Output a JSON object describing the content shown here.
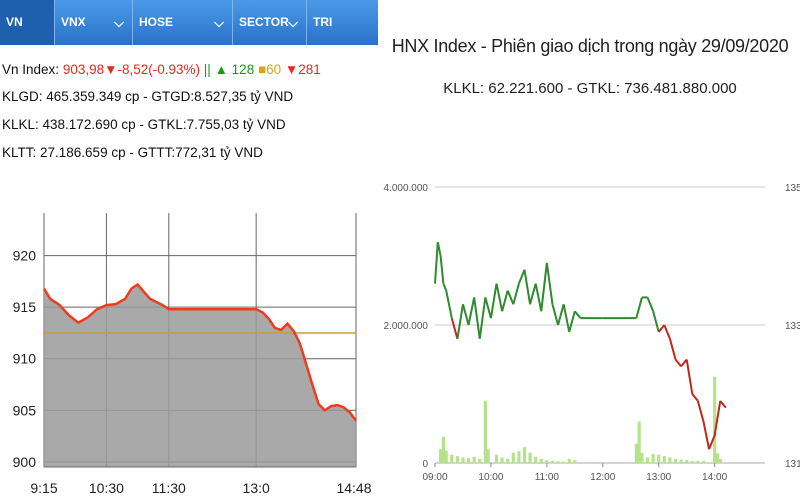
{
  "tabs": [
    {
      "label": "VN INDEX",
      "has_dropdown": false,
      "active": true
    },
    {
      "label": "VNX",
      "has_dropdown": true,
      "active": false
    },
    {
      "label": "HOSE",
      "has_dropdown": true,
      "active": false
    },
    {
      "label": "SECTOR",
      "has_dropdown": true,
      "active": false
    },
    {
      "label": "TRI",
      "has_dropdown": false,
      "active": false
    }
  ],
  "summary": {
    "index_label": "Vn Index:",
    "index_value": "903,98",
    "index_change": "▼-8,52(-0.93%)",
    "separator": "||",
    "up_count": "▲ 128",
    "flat_count": "■60",
    "down_count": "▼281",
    "line1": "KLGD: 465.359.349 cp - GTGD:8.527,35 tỷ VND",
    "line2": "KLKL: 438.172.690 cp - GTKL:7.755,03 tỷ VND",
    "line3": "KLTT: 27.186.659 cp - GTTT:772,31 tỷ VND"
  },
  "colors": {
    "up": "#1a9a1a",
    "down": "#e8281e",
    "flat": "#d9a31b",
    "tab_bg": "#2a72c8",
    "line": "#f23a1e",
    "area": "#9a9a9a",
    "ref": "#c8a030"
  },
  "chart_data": [
    {
      "type": "area",
      "title": "",
      "x_ticks": [
        "9:15",
        "10:30",
        "11:30",
        "13:0",
        "14:48"
      ],
      "y_ticks": [
        900,
        905,
        910,
        915,
        920
      ],
      "ylim": [
        899.5,
        922
      ],
      "reference": 912.5,
      "grid": true,
      "series": [
        {
          "values": [
            [
              0,
              916.8
            ],
            [
              0.02,
              915.8
            ],
            [
              0.05,
              915.2
            ],
            [
              0.08,
              914.2
            ],
            [
              0.11,
              913.5
            ],
            [
              0.14,
              914.0
            ],
            [
              0.17,
              914.8
            ],
            [
              0.2,
              915.2
            ],
            [
              0.23,
              915.3
            ],
            [
              0.26,
              915.8
            ],
            [
              0.28,
              916.8
            ],
            [
              0.3,
              917.2
            ],
            [
              0.32,
              916.5
            ],
            [
              0.34,
              915.8
            ],
            [
              0.36,
              915.5
            ],
            [
              0.38,
              915.2
            ],
            [
              0.4,
              914.8
            ],
            [
              0.45,
              914.8
            ],
            [
              0.5,
              914.8
            ],
            [
              0.55,
              914.8
            ],
            [
              0.6,
              914.8
            ],
            [
              0.65,
              914.8
            ],
            [
              0.68,
              914.8
            ],
            [
              0.7,
              914.5
            ],
            [
              0.72,
              913.9
            ],
            [
              0.74,
              913.0
            ],
            [
              0.76,
              912.8
            ],
            [
              0.78,
              913.4
            ],
            [
              0.8,
              912.7
            ],
            [
              0.82,
              911.5
            ],
            [
              0.84,
              909.5
            ],
            [
              0.86,
              907.5
            ],
            [
              0.88,
              905.6
            ],
            [
              0.9,
              905.0
            ],
            [
              0.92,
              905.4
            ],
            [
              0.94,
              905.5
            ],
            [
              0.96,
              905.3
            ],
            [
              0.98,
              904.8
            ],
            [
              1.0,
              903.98
            ]
          ]
        }
      ]
    },
    {
      "type": "line",
      "title": "HNX Index - Phiên giao dịch trong ngày 29/09/2020",
      "subtitle": "KLKL: 62.221.600 - GTKL: 736.481.880.000",
      "x_ticks": [
        "09:00",
        "10:00",
        "11:00",
        "12:00",
        "13:00",
        "14:00"
      ],
      "y_left_ticks": [
        "0",
        "2.000.000",
        "4.000.000"
      ],
      "y_right_ticks": [
        "131",
        "133",
        "135"
      ],
      "ylim_right": [
        131,
        135
      ],
      "ylim_left": [
        0,
        4000000
      ],
      "reference": 133.0,
      "grid": true,
      "price": [
        [
          9.0,
          133.6
        ],
        [
          9.05,
          134.2
        ],
        [
          9.1,
          134.0
        ],
        [
          9.15,
          133.6
        ],
        [
          9.2,
          133.5
        ],
        [
          9.3,
          133.1
        ],
        [
          9.4,
          132.8
        ],
        [
          9.5,
          133.3
        ],
        [
          9.6,
          133.0
        ],
        [
          9.7,
          133.4
        ],
        [
          9.8,
          132.8
        ],
        [
          9.9,
          133.4
        ],
        [
          10.0,
          133.1
        ],
        [
          10.1,
          133.6
        ],
        [
          10.2,
          133.2
        ],
        [
          10.3,
          133.5
        ],
        [
          10.4,
          133.3
        ],
        [
          10.5,
          133.6
        ],
        [
          10.6,
          133.8
        ],
        [
          10.7,
          133.3
        ],
        [
          10.8,
          133.6
        ],
        [
          10.9,
          133.2
        ],
        [
          11.0,
          133.9
        ],
        [
          11.1,
          133.3
        ],
        [
          11.2,
          133.0
        ],
        [
          11.3,
          133.3
        ],
        [
          11.4,
          132.9
        ],
        [
          11.5,
          133.2
        ],
        [
          11.6,
          133.1
        ],
        [
          12.0,
          133.1
        ],
        [
          12.6,
          133.1
        ],
        [
          12.7,
          133.4
        ],
        [
          12.8,
          133.4
        ],
        [
          12.9,
          133.2
        ],
        [
          13.0,
          132.9
        ],
        [
          13.1,
          133.0
        ],
        [
          13.2,
          132.8
        ],
        [
          13.3,
          132.5
        ],
        [
          13.4,
          132.4
        ],
        [
          13.5,
          132.5
        ],
        [
          13.6,
          132.0
        ],
        [
          13.7,
          131.9
        ],
        [
          13.8,
          131.6
        ],
        [
          13.9,
          131.2
        ],
        [
          14.0,
          131.4
        ],
        [
          14.1,
          131.9
        ],
        [
          14.2,
          131.8
        ]
      ],
      "volume": [
        [
          9.1,
          200000
        ],
        [
          9.15,
          380000
        ],
        [
          9.2,
          180000
        ],
        [
          9.3,
          120000
        ],
        [
          9.4,
          100000
        ],
        [
          9.5,
          80000
        ],
        [
          9.6,
          70000
        ],
        [
          9.7,
          90000
        ],
        [
          9.8,
          60000
        ],
        [
          9.9,
          900000
        ],
        [
          9.95,
          200000
        ],
        [
          10.1,
          120000
        ],
        [
          10.2,
          80000
        ],
        [
          10.3,
          60000
        ],
        [
          10.4,
          150000
        ],
        [
          10.5,
          170000
        ],
        [
          10.6,
          230000
        ],
        [
          10.7,
          150000
        ],
        [
          10.8,
          90000
        ],
        [
          10.9,
          60000
        ],
        [
          11.0,
          40000
        ],
        [
          11.1,
          30000
        ],
        [
          11.2,
          25000
        ],
        [
          11.3,
          20000
        ],
        [
          11.4,
          60000
        ],
        [
          11.5,
          40000
        ],
        [
          12.6,
          280000
        ],
        [
          12.65,
          600000
        ],
        [
          12.7,
          150000
        ],
        [
          12.8,
          80000
        ],
        [
          12.9,
          130000
        ],
        [
          13.0,
          120000
        ],
        [
          13.1,
          100000
        ],
        [
          13.2,
          80000
        ],
        [
          13.3,
          60000
        ],
        [
          13.4,
          50000
        ],
        [
          13.5,
          40000
        ],
        [
          13.6,
          30000
        ],
        [
          13.7,
          30000
        ],
        [
          13.8,
          30000
        ],
        [
          14.0,
          1250000
        ],
        [
          14.05,
          140000
        ],
        [
          14.1,
          60000
        ]
      ]
    }
  ]
}
